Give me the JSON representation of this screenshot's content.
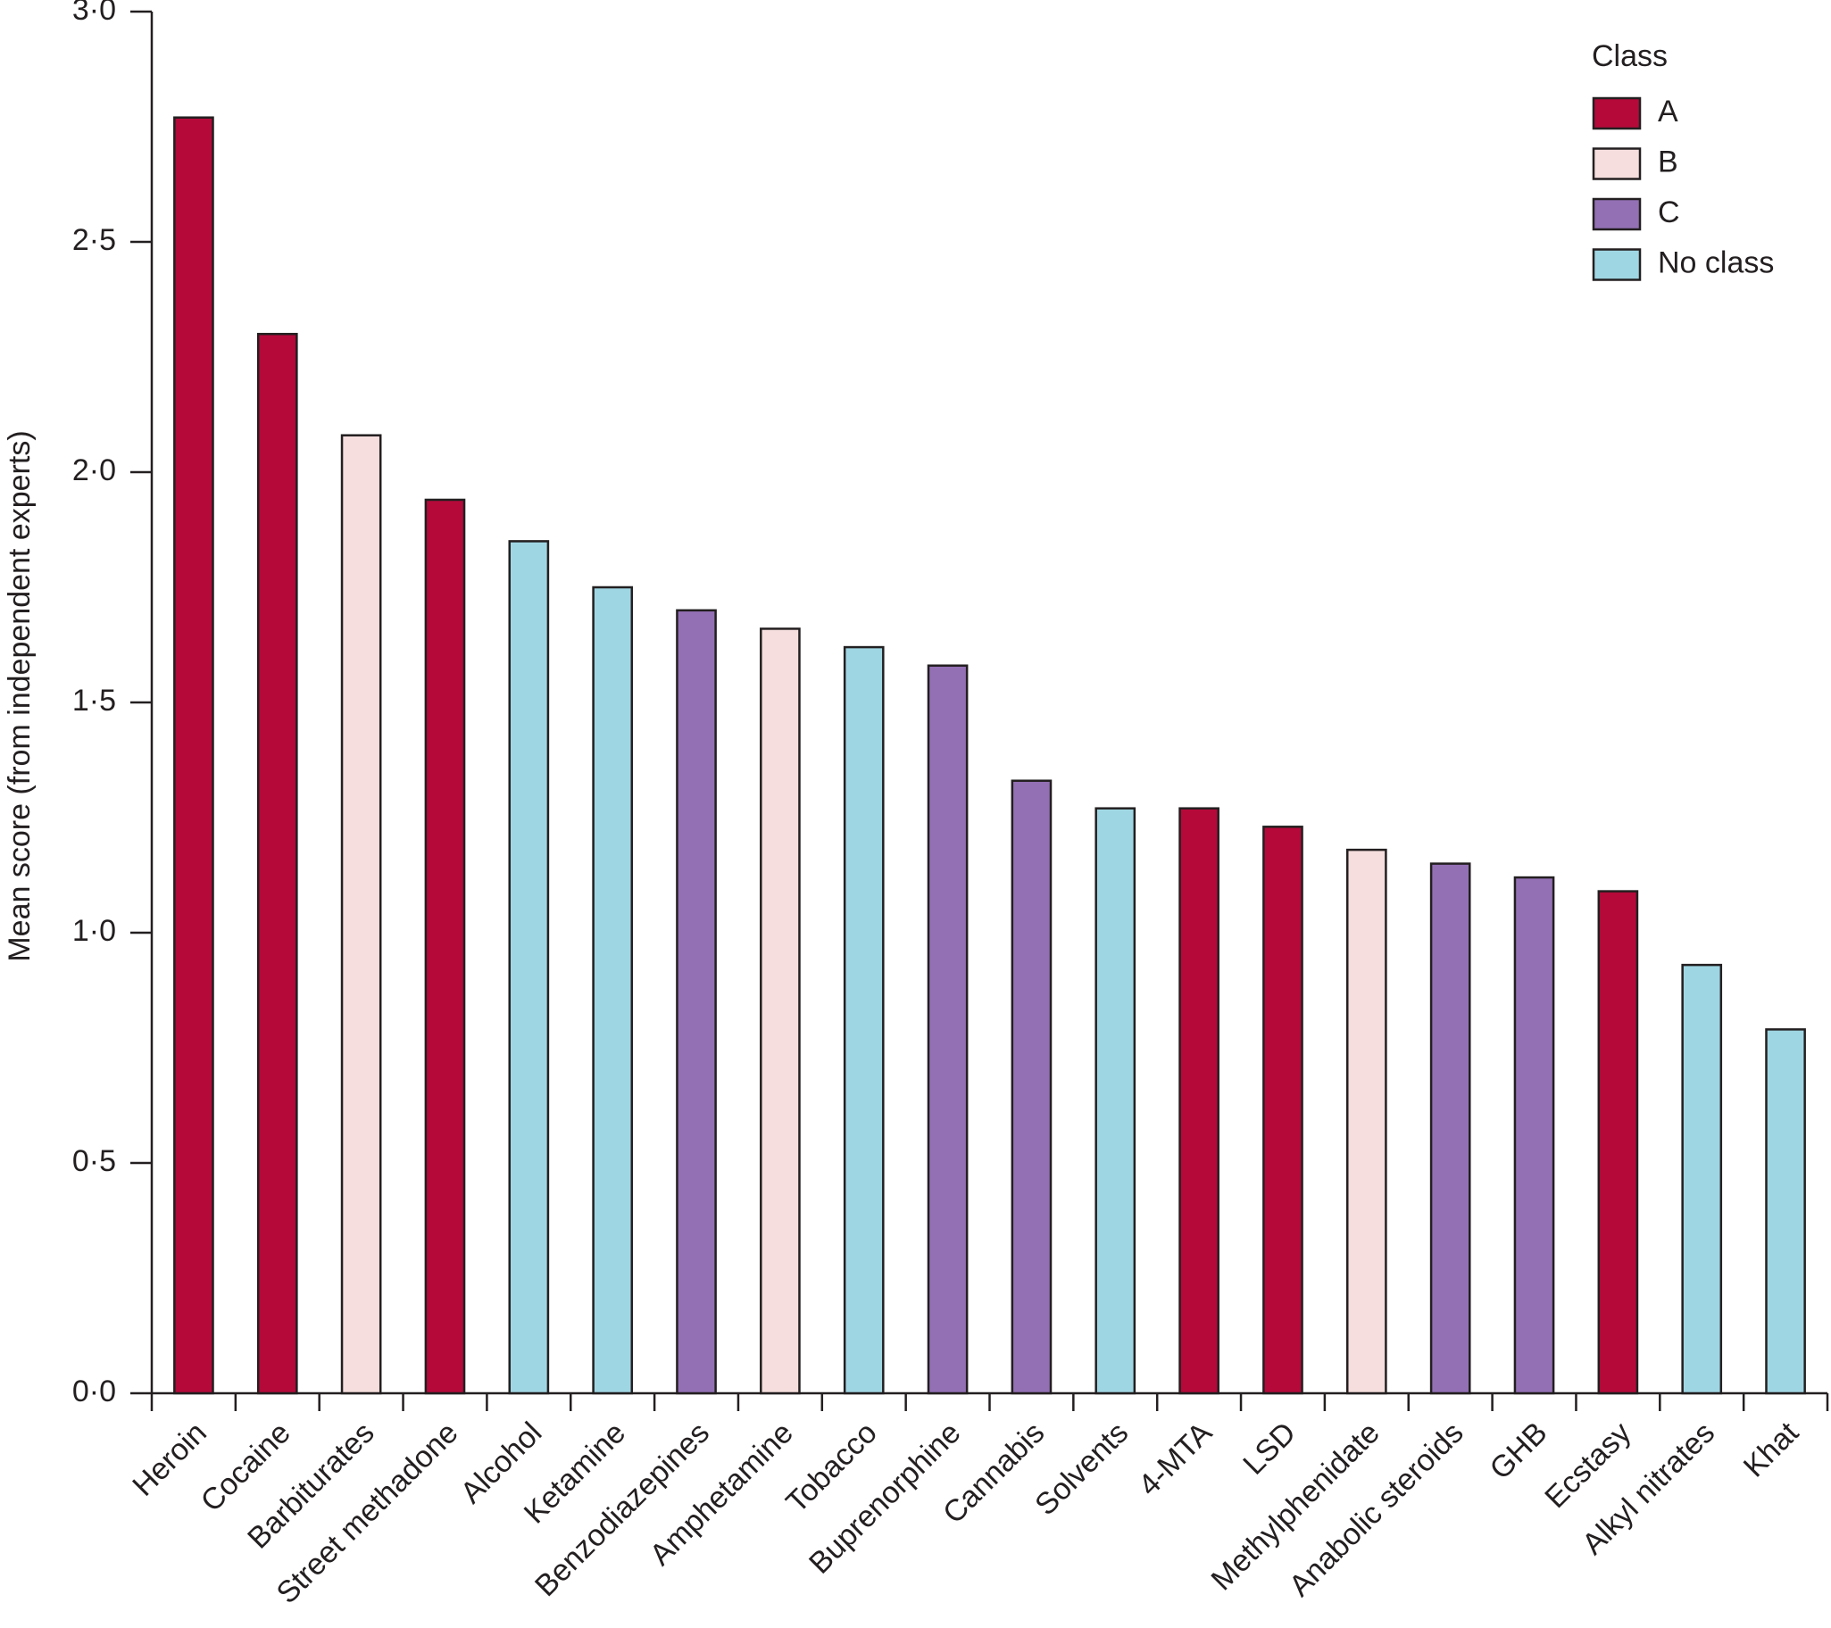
{
  "chart_data": {
    "type": "bar",
    "y_label": "Mean score (from independent experts)",
    "categories": [
      "Heroin",
      "Cocaine",
      "Barbiturates",
      "Street methadone",
      "Alcohol",
      "Ketamine",
      "Benzodiazepines",
      "Amphetamine",
      "Tobacco",
      "Buprenorphine",
      "Cannabis",
      "Solvents",
      "4-MTA",
      "LSD",
      "Methylphenidate",
      "Anabolic steroids",
      "GHB",
      "Ecstasy",
      "Alkyl nitrates",
      "Khat"
    ],
    "legend_title": "Class",
    "series": [
      {
        "name": "A",
        "color": "#b5093a",
        "values": [
          2.77,
          2.3,
          null,
          1.94,
          null,
          null,
          null,
          null,
          null,
          null,
          null,
          null,
          1.27,
          1.23,
          null,
          null,
          null,
          1.09,
          null,
          null
        ]
      },
      {
        "name": "B",
        "color": "#f5dedd",
        "values": [
          null,
          null,
          2.08,
          null,
          null,
          null,
          null,
          1.66,
          null,
          null,
          null,
          null,
          null,
          null,
          1.18,
          null,
          null,
          null,
          null,
          null
        ]
      },
      {
        "name": "C",
        "color": "#9370b4",
        "values": [
          null,
          null,
          null,
          null,
          null,
          null,
          1.7,
          null,
          null,
          1.58,
          1.33,
          null,
          null,
          null,
          null,
          1.15,
          1.12,
          null,
          null,
          null
        ]
      },
      {
        "name": "No class",
        "color": "#9fd6e3",
        "values": [
          null,
          null,
          null,
          null,
          1.85,
          1.75,
          null,
          null,
          1.62,
          null,
          null,
          1.27,
          null,
          null,
          null,
          null,
          null,
          null,
          0.93,
          0.79
        ]
      }
    ],
    "ylim": [
      0,
      3
    ],
    "yticks": [
      {
        "value": 0,
        "label": "0·0"
      },
      {
        "value": 0.5,
        "label": "0·5"
      },
      {
        "value": 1,
        "label": "1·0"
      },
      {
        "value": 1.5,
        "label": "1·5"
      },
      {
        "value": 2,
        "label": "2·0"
      },
      {
        "value": 2.5,
        "label": "2·5"
      },
      {
        "value": 3,
        "label": "3·0"
      }
    ],
    "legend_position": "upper right"
  }
}
